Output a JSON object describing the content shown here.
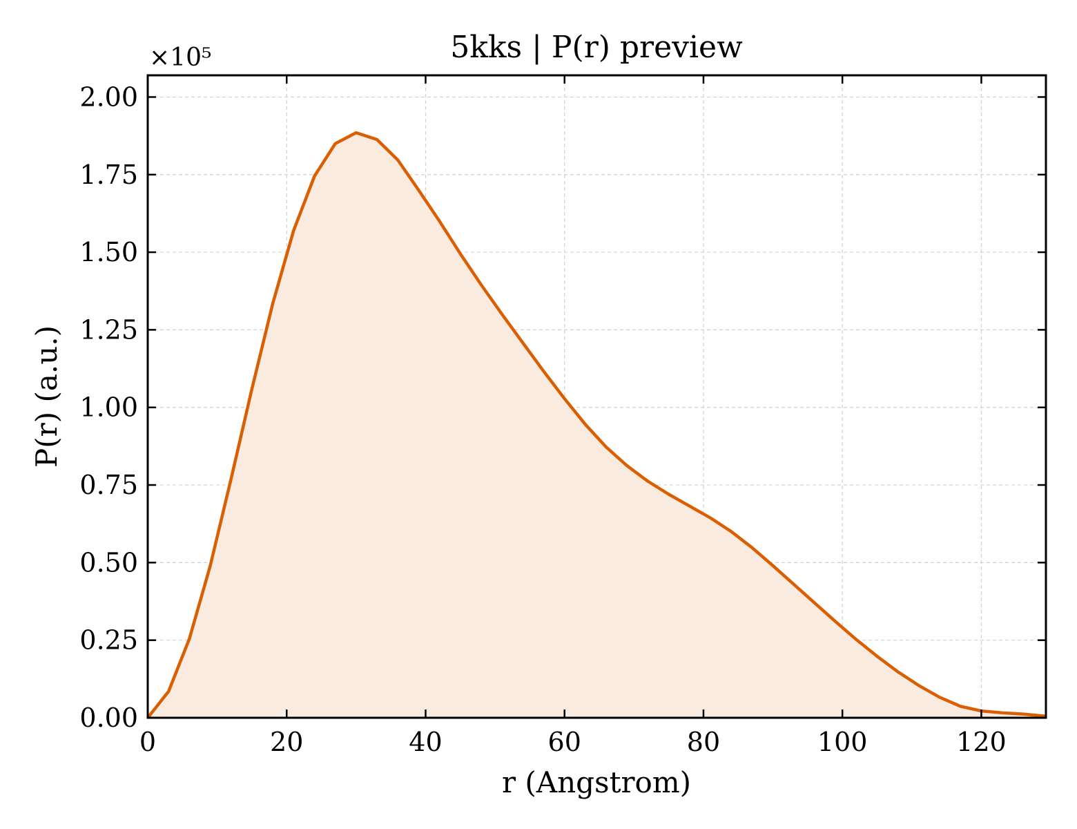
{
  "chart_data": {
    "type": "area",
    "title": "5kks | P(r) preview",
    "xlabel": "r (Angstrom)",
    "ylabel": "P(r) (a.u.)",
    "y_multiplier": "×10⁵",
    "xlim": [
      0,
      129.3
    ],
    "ylim": [
      0,
      2.07
    ],
    "x_ticks": [
      "0",
      "20",
      "40",
      "60",
      "80",
      "100",
      "120"
    ],
    "y_ticks": [
      "0.00",
      "0.25",
      "0.50",
      "0.75",
      "1.00",
      "1.25",
      "1.50",
      "1.75",
      "2.00"
    ],
    "grid": true,
    "line_color": "#d95f02",
    "fill_color": "#f9ebe0",
    "series": [
      {
        "x": [
          0,
          3,
          6,
          9,
          12,
          15,
          18,
          21,
          24,
          27,
          30,
          33,
          36,
          39,
          42,
          45,
          48,
          51,
          54,
          57,
          60,
          63,
          66,
          69,
          72,
          75,
          78,
          81,
          84,
          87,
          90,
          93,
          96,
          99,
          102,
          105,
          108,
          111,
          114,
          117,
          120,
          123,
          126,
          129.3
        ],
        "y": [
          0.0,
          0.085,
          0.255,
          0.49,
          0.77,
          1.06,
          1.335,
          1.57,
          1.745,
          1.85,
          1.885,
          1.863,
          1.797,
          1.7,
          1.6,
          1.495,
          1.395,
          1.3,
          1.208,
          1.116,
          1.028,
          0.945,
          0.872,
          0.812,
          0.762,
          0.72,
          0.682,
          0.644,
          0.6,
          0.548,
          0.49,
          0.43,
          0.37,
          0.31,
          0.252,
          0.198,
          0.148,
          0.104,
          0.066,
          0.037,
          0.022,
          0.016,
          0.012,
          0.005
        ]
      }
    ]
  }
}
